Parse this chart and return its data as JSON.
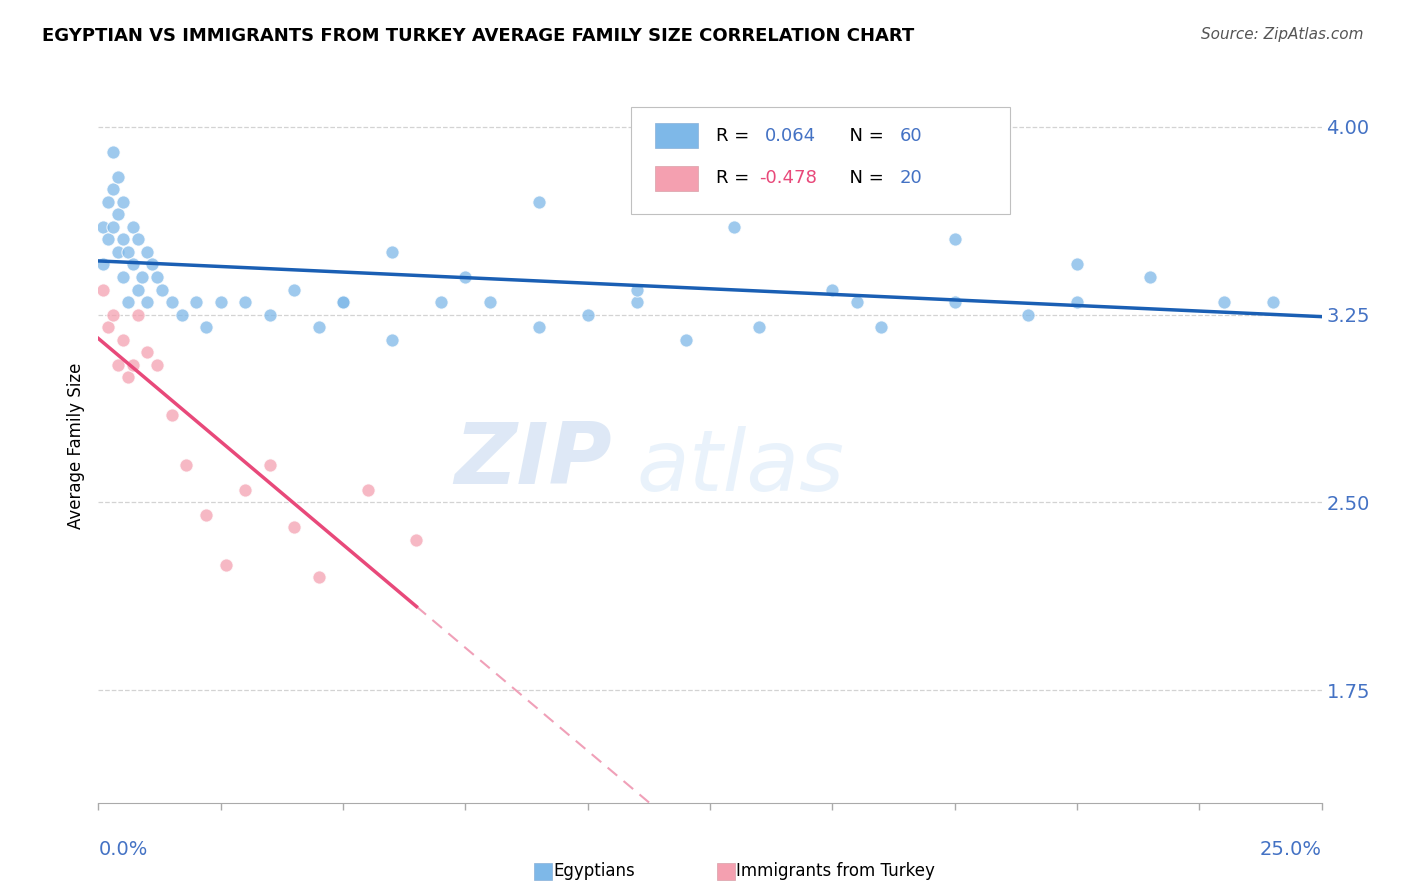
{
  "title": "EGYPTIAN VS IMMIGRANTS FROM TURKEY AVERAGE FAMILY SIZE CORRELATION CHART",
  "source": "Source: ZipAtlas.com",
  "ylabel": "Average Family Size",
  "xmin": 0.0,
  "xmax": 0.25,
  "ymin": 1.3,
  "ymax": 4.15,
  "yticks": [
    1.75,
    2.5,
    3.25,
    4.0
  ],
  "egyptians_x": [
    0.001,
    0.001,
    0.002,
    0.002,
    0.003,
    0.003,
    0.003,
    0.004,
    0.004,
    0.004,
    0.005,
    0.005,
    0.005,
    0.006,
    0.006,
    0.007,
    0.007,
    0.008,
    0.008,
    0.009,
    0.01,
    0.01,
    0.011,
    0.012,
    0.013,
    0.015,
    0.017,
    0.02,
    0.022,
    0.025,
    0.03,
    0.035,
    0.04,
    0.045,
    0.05,
    0.06,
    0.07,
    0.08,
    0.09,
    0.1,
    0.11,
    0.12,
    0.135,
    0.15,
    0.16,
    0.175,
    0.19,
    0.2,
    0.215,
    0.23,
    0.05,
    0.06,
    0.075,
    0.09,
    0.11,
    0.13,
    0.155,
    0.175,
    0.2,
    0.24
  ],
  "egyptians_y": [
    3.45,
    3.6,
    3.7,
    3.55,
    3.75,
    3.6,
    3.9,
    3.5,
    3.65,
    3.8,
    3.4,
    3.55,
    3.7,
    3.3,
    3.5,
    3.6,
    3.45,
    3.35,
    3.55,
    3.4,
    3.5,
    3.3,
    3.45,
    3.4,
    3.35,
    3.3,
    3.25,
    3.3,
    3.2,
    3.3,
    3.3,
    3.25,
    3.35,
    3.2,
    3.3,
    3.15,
    3.3,
    3.3,
    3.2,
    3.25,
    3.3,
    3.15,
    3.2,
    3.35,
    3.2,
    3.3,
    3.25,
    3.3,
    3.4,
    3.3,
    3.3,
    3.5,
    3.4,
    3.7,
    3.35,
    3.6,
    3.3,
    3.55,
    3.45,
    3.3
  ],
  "turkey_x": [
    0.001,
    0.002,
    0.003,
    0.004,
    0.005,
    0.006,
    0.007,
    0.008,
    0.01,
    0.012,
    0.015,
    0.018,
    0.022,
    0.026,
    0.03,
    0.035,
    0.04,
    0.045,
    0.055,
    0.065
  ],
  "turkey_y": [
    3.35,
    3.2,
    3.25,
    3.05,
    3.15,
    3.0,
    3.05,
    3.25,
    3.1,
    3.05,
    2.85,
    2.65,
    2.45,
    2.25,
    2.55,
    2.65,
    2.4,
    2.2,
    2.55,
    2.35
  ],
  "egypt_trend_color": "#1a5fb4",
  "turkey_trend_solid_color": "#e8497a",
  "turkey_trend_dash_color": "#f0a0b8",
  "dot_color_egypt": "#7eb8e8",
  "dot_color_turkey": "#f4a0b0",
  "watermark_zip": "ZIP",
  "watermark_atlas": "atlas",
  "background_color": "#ffffff",
  "grid_color": "#c8c8c8",
  "legend_r1": "R =  0.064",
  "legend_n1": "N = 60",
  "legend_r2": "R = -0.478",
  "legend_n2": "N = 20",
  "legend_r1_color": "#4472c4",
  "legend_n1_color": "#4472c4",
  "legend_r2_color": "#e8497a",
  "legend_n2_color": "#4472c4"
}
